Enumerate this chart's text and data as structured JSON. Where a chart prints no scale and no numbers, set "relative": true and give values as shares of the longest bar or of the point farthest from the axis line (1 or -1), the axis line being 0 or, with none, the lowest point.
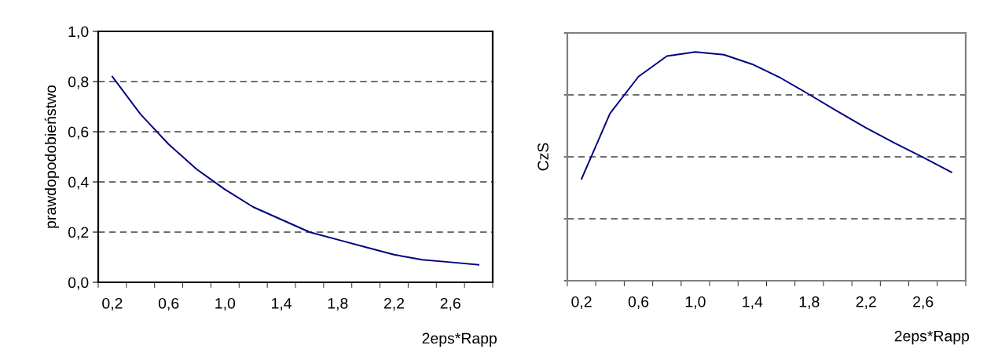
{
  "chart_data": [
    {
      "type": "line",
      "ylabel": "prawdopodobieństwo",
      "xlabel": "2eps*Rapp",
      "categories": [
        "0,2",
        null,
        "0,6",
        null,
        "1,0",
        null,
        "1,4",
        null,
        "1,8",
        null,
        "2,2",
        null,
        "2,6",
        null
      ],
      "series": [
        {
          "color": "#000080",
          "values": [
            0.82,
            0.67,
            0.55,
            0.45,
            0.37,
            0.3,
            0.25,
            0.2,
            0.17,
            0.14,
            0.11,
            0.09,
            0.08,
            0.07
          ]
        }
      ],
      "ylim": [
        0,
        1
      ],
      "yticks": [
        {
          "value": 0,
          "label": "0,0"
        },
        {
          "value": 0.2,
          "label": "0,2"
        },
        {
          "value": 0.4,
          "label": "0,4"
        },
        {
          "value": 0.6,
          "label": "0,6"
        },
        {
          "value": 0.8,
          "label": "0,8"
        },
        {
          "value": 1,
          "label": "1,0"
        }
      ],
      "grid": "y",
      "legend": false
    },
    {
      "type": "line",
      "ylabel": "CzS",
      "xlabel": "2eps*Rapp",
      "relative": true,
      "categories": [
        "0,2",
        null,
        "0,6",
        null,
        "1,0",
        null,
        "1,4",
        null,
        "1,8",
        null,
        "2,2",
        null,
        "2,6",
        null
      ],
      "series": [
        {
          "color": "#000080",
          "values": [
            0.445,
            0.731,
            0.892,
            0.982,
            1,
            0.988,
            0.946,
            0.886,
            0.814,
            0.74,
            0.668,
            0.602,
            0.539,
            0.474
          ]
        }
      ],
      "grid": "y",
      "legend": false
    }
  ]
}
